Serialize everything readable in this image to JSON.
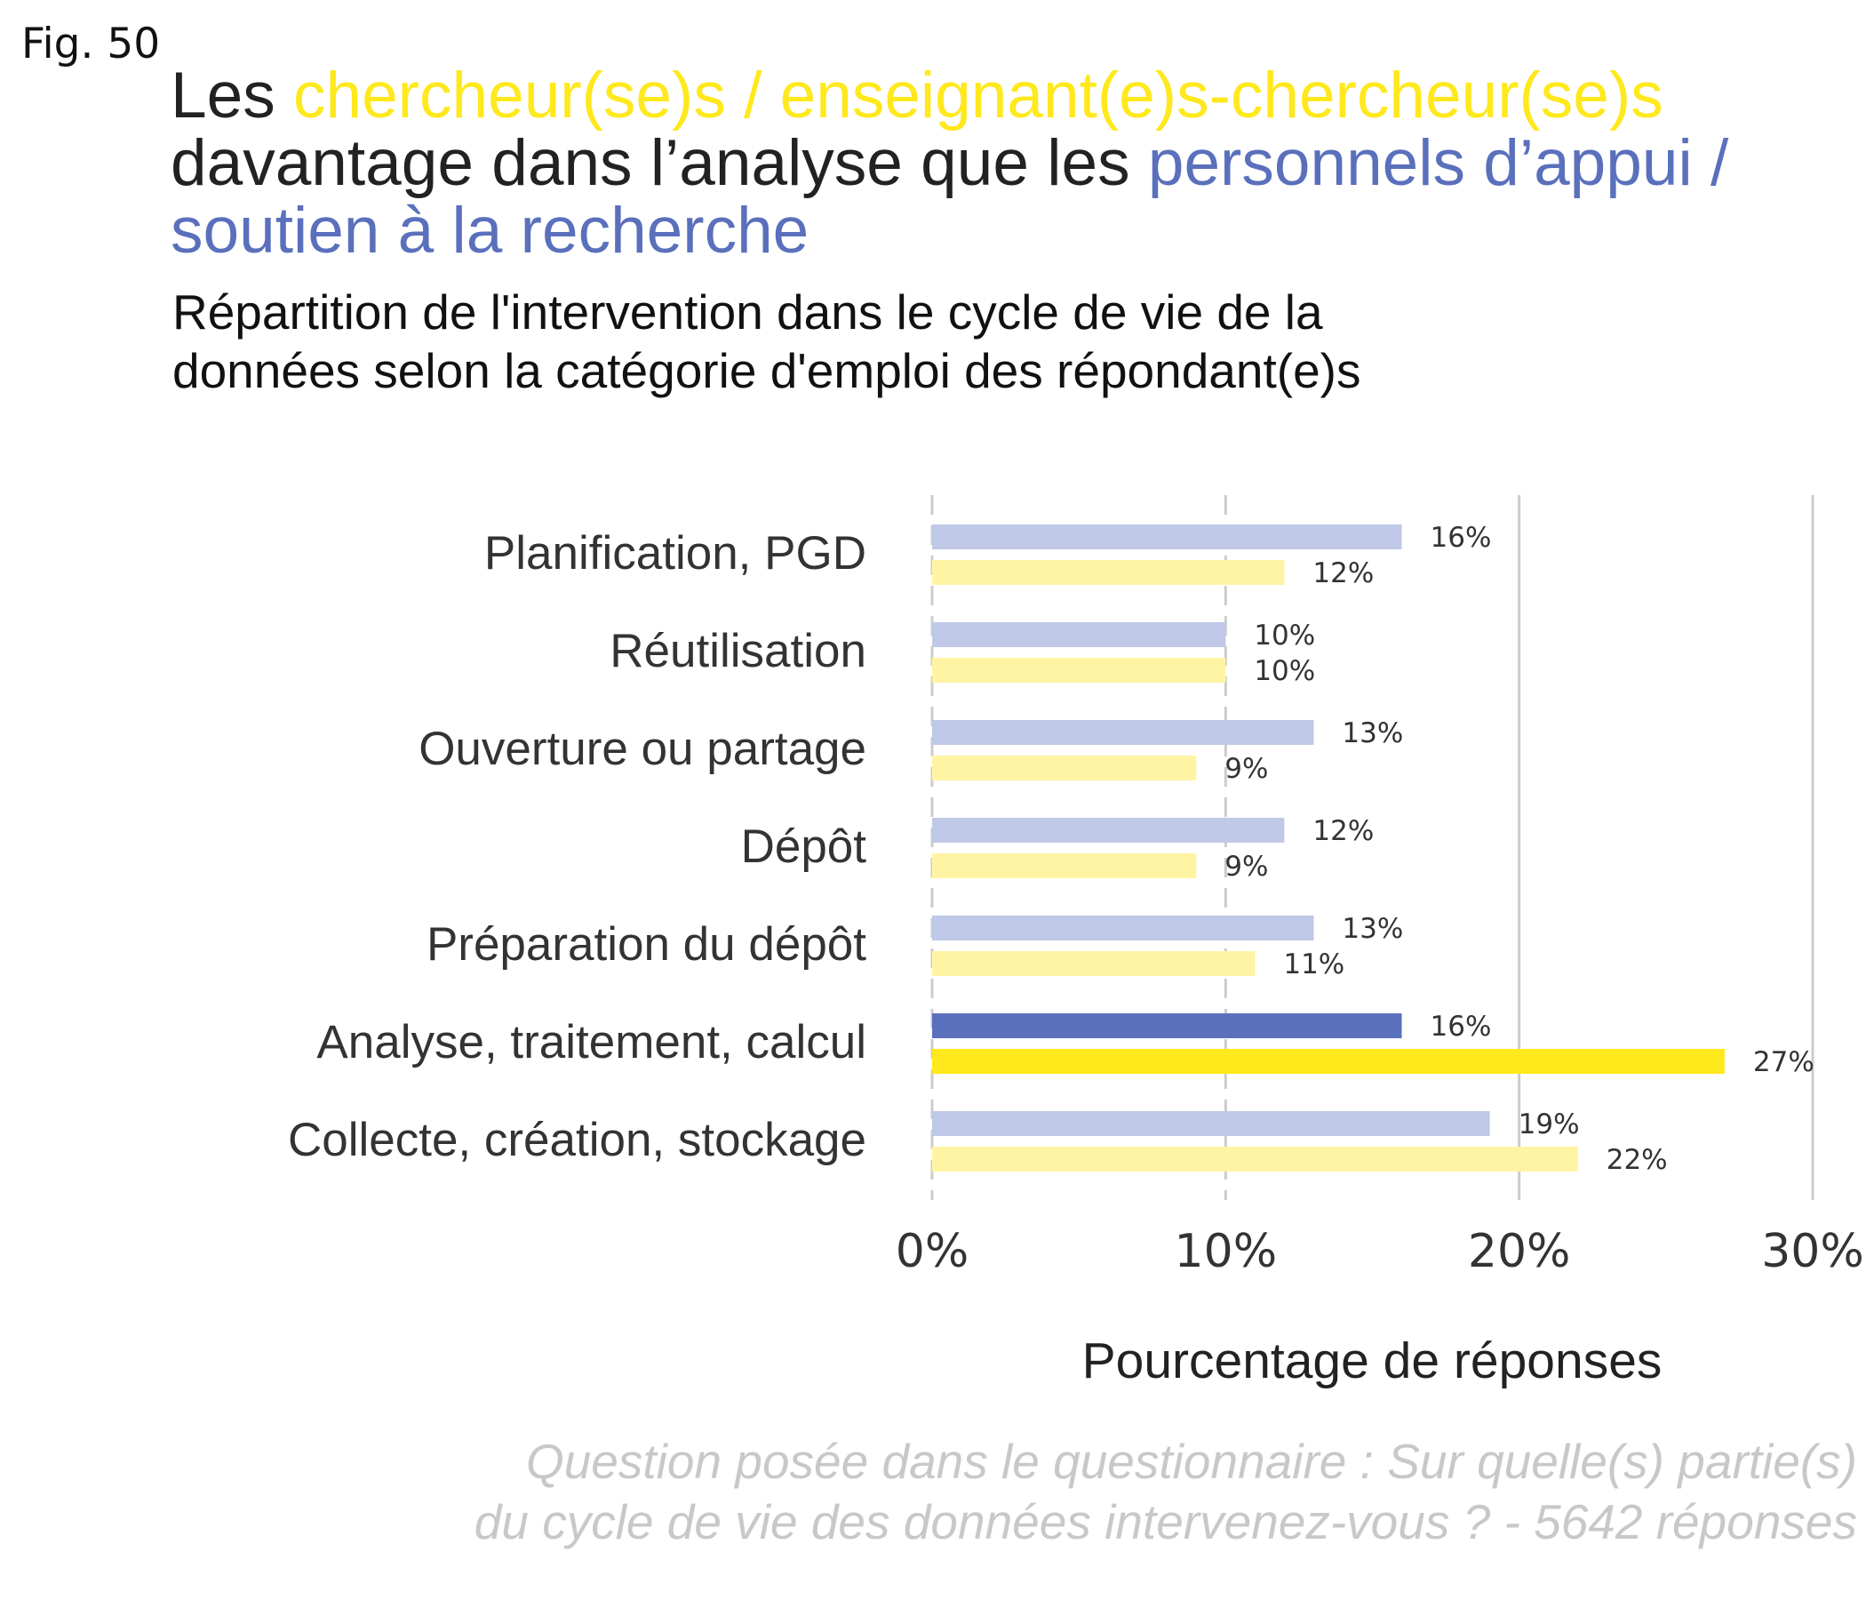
{
  "fig_label": "Fig. 50",
  "title": {
    "part1": "Les ",
    "part2": "chercheur(se)s / enseignant(e)s-chercheur(se)s",
    "part3": " davantage dans l’analyse que les ",
    "part4": "personnels d’appui / soutien à la recherche"
  },
  "subtitle": "Répartition de l'intervention dans le cycle de vie de la données selon la catégorie d'emploi des répondant(e)s",
  "caption": {
    "line1": "Question posée dans le questionnaire : Sur quelle(s) partie(s)",
    "line2": "du cycle de vie des données intervenez-vous ? - 5642 réponses"
  },
  "colors": {
    "yellow_highlight": "#ffe81c",
    "blue_highlight": "#5a70bc",
    "yellow_faded": "#fff4a3",
    "blue_faded": "#bfc8e6",
    "caption_gray": "#c8c8c8"
  },
  "chart_data": {
    "type": "bar",
    "orientation": "horizontal",
    "categories": [
      "Planification, PGD",
      "Réutilisation",
      "Ouverture ou partage",
      "Dépôt",
      "Préparation du dépôt",
      "Analyse, traitement, calcul",
      "Collecte, création, stockage"
    ],
    "series": [
      {
        "values": [
          16,
          10,
          13,
          12,
          13,
          16,
          19
        ],
        "labels": [
          "16%",
          "10%",
          "13%",
          "12%",
          "13%",
          "16%",
          "19%"
        ],
        "color": "#bfc8e6",
        "highlight_color": "#5a70bc"
      },
      {
        "values": [
          12,
          10,
          9,
          9,
          11,
          27,
          22
        ],
        "labels": [
          "12%",
          "10%",
          "9%",
          "9%",
          "11%",
          "27%",
          "22%"
        ],
        "color": "#fff4a3",
        "highlight_color": "#ffe81c"
      }
    ],
    "highlight_category": "Analyse, traitement, calcul",
    "xlabel": "Pourcentage de réponses",
    "xlim": [
      0,
      30
    ],
    "xticks": [
      0,
      10,
      20,
      30
    ],
    "xtick_labels": [
      "0%",
      "10%",
      "20%",
      "30%"
    ],
    "grid": true
  }
}
